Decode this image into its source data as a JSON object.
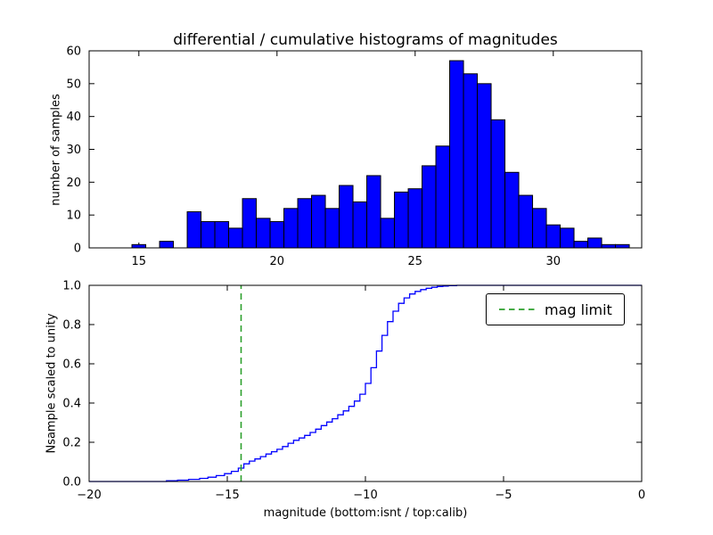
{
  "figure": {
    "background": "#ffffff"
  },
  "chart_data": [
    {
      "type": "bar",
      "title": "differential / cumulative histograms of magnitudes",
      "ylabel": "number of samples",
      "bar_color": "#0000ff",
      "bar_edge_color": "#000000",
      "bins": {
        "start": 14.75,
        "width": 0.5
      },
      "values": [
        1,
        0,
        2,
        0,
        11,
        8,
        8,
        6,
        15,
        9,
        8,
        12,
        15,
        16,
        12,
        19,
        14,
        22,
        9,
        17,
        18,
        25,
        31,
        57,
        53,
        50,
        39,
        23,
        16,
        12,
        7,
        6,
        2,
        3,
        1,
        1
      ],
      "xlim": [
        13.2,
        33.2
      ],
      "ylim": [
        0,
        60
      ],
      "xticks": [
        15,
        20,
        25,
        30
      ],
      "xtick_labels": [
        "15",
        "20",
        "25",
        "30"
      ],
      "yticks": [
        0,
        10,
        20,
        30,
        40,
        50,
        60
      ],
      "ytick_labels": [
        "0",
        "10",
        "20",
        "30",
        "40",
        "50",
        "60"
      ],
      "grid": false
    },
    {
      "type": "line",
      "style": "step",
      "ylabel": "Nsample scaled to unity",
      "xlabel": "magnitude (bottom:isnt / top:calib)",
      "line_color": "#0000ff",
      "xlim": [
        -20,
        0
      ],
      "ylim": [
        0,
        1
      ],
      "xticks": [
        -20,
        -15,
        -10,
        -5,
        0
      ],
      "xtick_labels": [
        "−20",
        "−15",
        "−10",
        "−5",
        "0"
      ],
      "yticks": [
        0,
        0.2,
        0.4,
        0.6,
        0.8,
        1
      ],
      "ytick_labels": [
        "0.0",
        "0.2",
        "0.4",
        "0.6",
        "0.8",
        "1.0"
      ],
      "step_points": [
        [
          -20,
          0
        ],
        [
          -17.6,
          0
        ],
        [
          -17.2,
          0.004
        ],
        [
          -16.8,
          0.007
        ],
        [
          -16.4,
          0.011
        ],
        [
          -16.0,
          0.016
        ],
        [
          -15.7,
          0.022
        ],
        [
          -15.4,
          0.03
        ],
        [
          -15.1,
          0.04
        ],
        [
          -14.85,
          0.052
        ],
        [
          -14.6,
          0.068
        ],
        [
          -14.4,
          0.09
        ],
        [
          -14.2,
          0.104
        ],
        [
          -14.0,
          0.115
        ],
        [
          -13.8,
          0.127
        ],
        [
          -13.6,
          0.14
        ],
        [
          -13.4,
          0.152
        ],
        [
          -13.2,
          0.164
        ],
        [
          -13.0,
          0.178
        ],
        [
          -12.8,
          0.195
        ],
        [
          -12.6,
          0.21
        ],
        [
          -12.4,
          0.222
        ],
        [
          -12.2,
          0.235
        ],
        [
          -12.0,
          0.25
        ],
        [
          -11.8,
          0.267
        ],
        [
          -11.6,
          0.285
        ],
        [
          -11.4,
          0.303
        ],
        [
          -11.2,
          0.32
        ],
        [
          -11.0,
          0.34
        ],
        [
          -10.8,
          0.36
        ],
        [
          -10.6,
          0.383
        ],
        [
          -10.4,
          0.41
        ],
        [
          -10.2,
          0.445
        ],
        [
          -10.0,
          0.5
        ],
        [
          -9.8,
          0.58
        ],
        [
          -9.6,
          0.665
        ],
        [
          -9.4,
          0.745
        ],
        [
          -9.2,
          0.815
        ],
        [
          -9.0,
          0.868
        ],
        [
          -8.8,
          0.908
        ],
        [
          -8.6,
          0.936
        ],
        [
          -8.4,
          0.956
        ],
        [
          -8.2,
          0.969
        ],
        [
          -8.0,
          0.978
        ],
        [
          -7.8,
          0.985
        ],
        [
          -7.6,
          0.99
        ],
        [
          -7.4,
          0.994
        ],
        [
          -7.2,
          0.996
        ],
        [
          -7.0,
          0.998
        ],
        [
          -6.7,
          1.0
        ],
        [
          0,
          1.0
        ]
      ],
      "vline": {
        "x": -14.5,
        "color": "#2ca02c",
        "style": "dashed",
        "label": "mag limit"
      },
      "legend": {
        "position": "upper right",
        "entries": [
          "mag limit"
        ]
      },
      "grid": false
    }
  ]
}
